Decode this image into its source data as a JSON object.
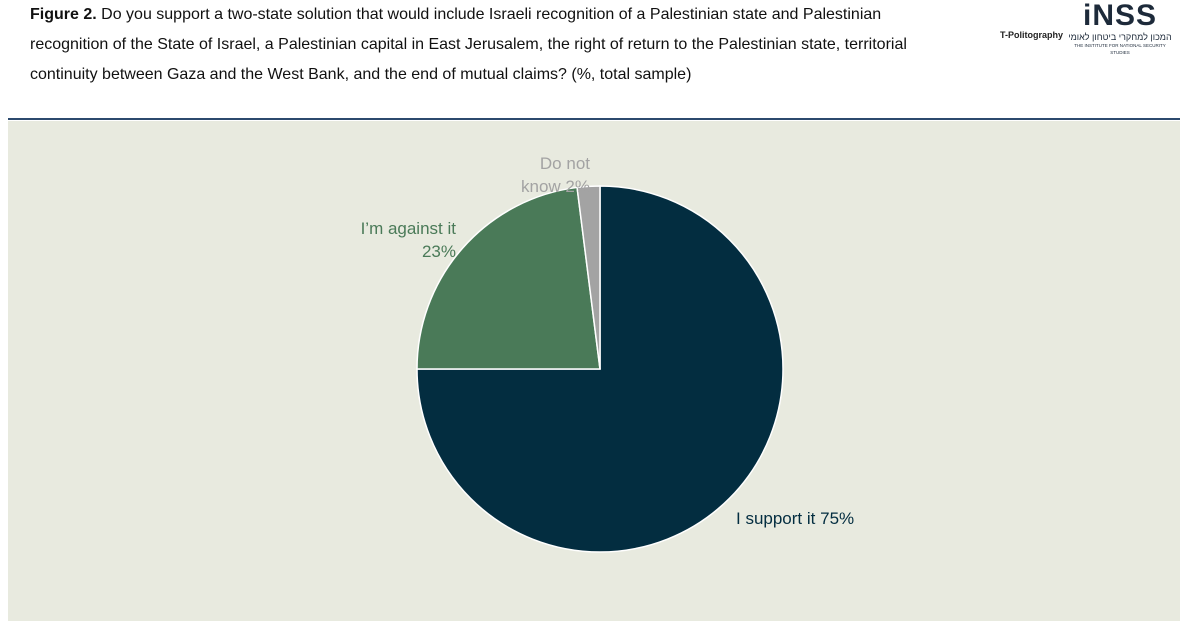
{
  "chart_data": {
    "type": "pie",
    "title_label": "Figure 2.",
    "title": "Do you support a two-state solution that would include Israeli recognition of a Palestinian state and Palestinian recognition of the State of Israel, a Palestinian capital in East Jerusalem, the right of return to the Palestinian state, territorial continuity between Gaza and the West Bank, and the end of mutual claims? (%, total sample)",
    "categories": [
      "I support it",
      "I’m against it",
      "Do not know"
    ],
    "values": [
      75,
      23,
      2
    ],
    "value_labels": [
      "75%",
      "23%",
      "2%"
    ],
    "colors": [
      "#032d40",
      "#4a7a58",
      "#a3a3a3"
    ]
  },
  "logos": {
    "left": "T-Politography",
    "right": "iNSS",
    "right_hebrew": "המכון למחקרי ביטחון לאומי",
    "right_english": "THE INSTITUTE FOR NATIONAL SECURITY STUDIES"
  }
}
